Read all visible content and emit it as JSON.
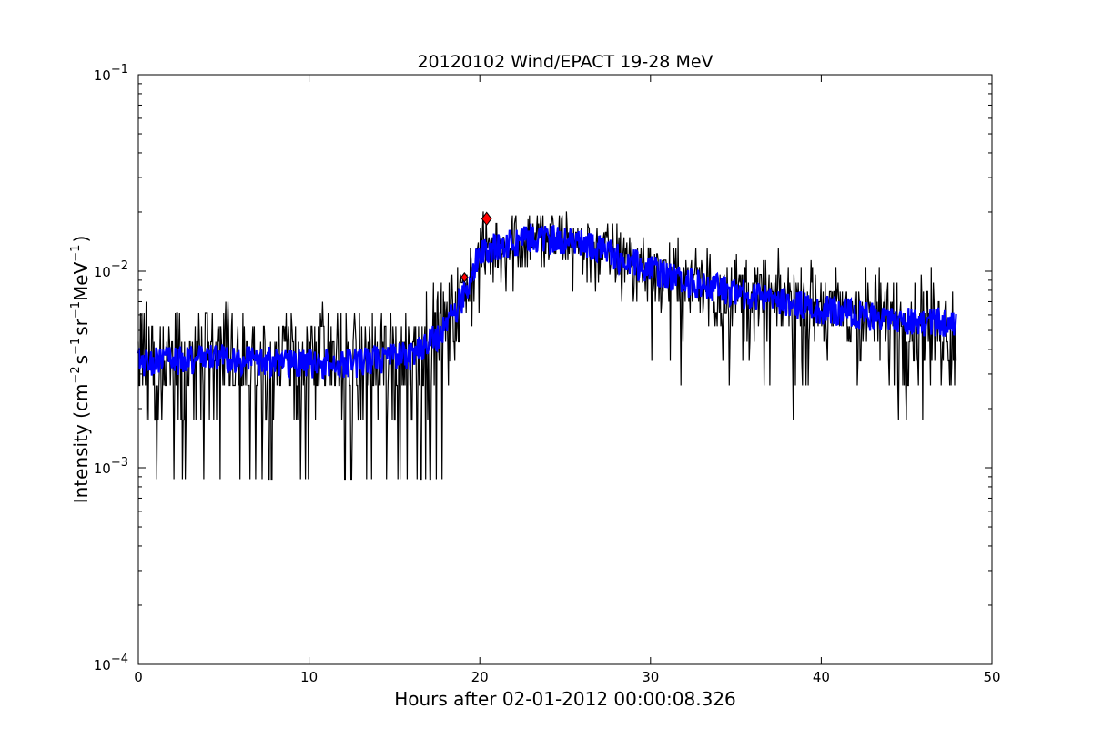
{
  "chart_data": {
    "type": "line",
    "title": "20120102 Wind/EPACT 19-28 MeV",
    "xlabel": "Hours after 02-01-2012 00:00:08.326",
    "ylabel": {
      "prefix": "Intensity (cm",
      "exp1": "−2",
      "s": "s",
      "exp2": "−1",
      "sr": "sr",
      "exp3": "−1",
      "mev": "MeV",
      "exp4": "−1",
      "suffix": ")"
    },
    "xlim": [
      0,
      50
    ],
    "ylim": [
      0.0001,
      0.1
    ],
    "yscale": "log",
    "x_ticks": [
      "0",
      "10",
      "20",
      "30",
      "40",
      "50"
    ],
    "y_ticks": [
      {
        "base": "10",
        "exp": "−4"
      },
      {
        "base": "10",
        "exp": "−3"
      },
      {
        "base": "10",
        "exp": "−2"
      },
      {
        "base": "10",
        "exp": "−1"
      }
    ],
    "grid": false,
    "legend": "none",
    "series": [
      {
        "color": "#000000",
        "style": "raw-noisy",
        "profile": [
          [
            0.0,
            0.0035
          ],
          [
            2.0,
            0.0035
          ],
          [
            4.0,
            0.0037
          ],
          [
            8.0,
            0.0035
          ],
          [
            12.0,
            0.0034
          ],
          [
            16.0,
            0.0038
          ],
          [
            17.0,
            0.0043
          ],
          [
            18.0,
            0.0052
          ],
          [
            19.0,
            0.0075
          ],
          [
            20.0,
            0.0125
          ],
          [
            21.0,
            0.0135
          ],
          [
            23.0,
            0.015
          ],
          [
            25.0,
            0.0145
          ],
          [
            27.0,
            0.013
          ],
          [
            29.0,
            0.011
          ],
          [
            32.0,
            0.009
          ],
          [
            36.0,
            0.0075
          ],
          [
            40.0,
            0.0065
          ],
          [
            44.0,
            0.0058
          ],
          [
            47.9,
            0.0055
          ]
        ],
        "x_end": 47.9
      },
      {
        "color": "#0000ff",
        "style": "smoothed",
        "profile": [
          [
            0.0,
            0.0035
          ],
          [
            2.0,
            0.0035
          ],
          [
            4.0,
            0.0037
          ],
          [
            8.0,
            0.0035
          ],
          [
            12.0,
            0.0034
          ],
          [
            16.0,
            0.0038
          ],
          [
            17.0,
            0.0043
          ],
          [
            18.0,
            0.0052
          ],
          [
            19.0,
            0.0075
          ],
          [
            20.0,
            0.0125
          ],
          [
            21.0,
            0.0135
          ],
          [
            23.0,
            0.015
          ],
          [
            25.0,
            0.0145
          ],
          [
            27.0,
            0.013
          ],
          [
            29.0,
            0.011
          ],
          [
            32.0,
            0.009
          ],
          [
            36.0,
            0.0075
          ],
          [
            40.0,
            0.0065
          ],
          [
            44.0,
            0.0058
          ],
          [
            47.9,
            0.0055
          ]
        ],
        "x_end": 47.9
      }
    ],
    "markers": [
      {
        "x": 19.1,
        "y": 0.0093,
        "shape": "diamond",
        "color": "#ff0000"
      },
      {
        "x": 20.4,
        "y": 0.0185,
        "shape": "diamond",
        "color": "#ff0000"
      }
    ]
  }
}
